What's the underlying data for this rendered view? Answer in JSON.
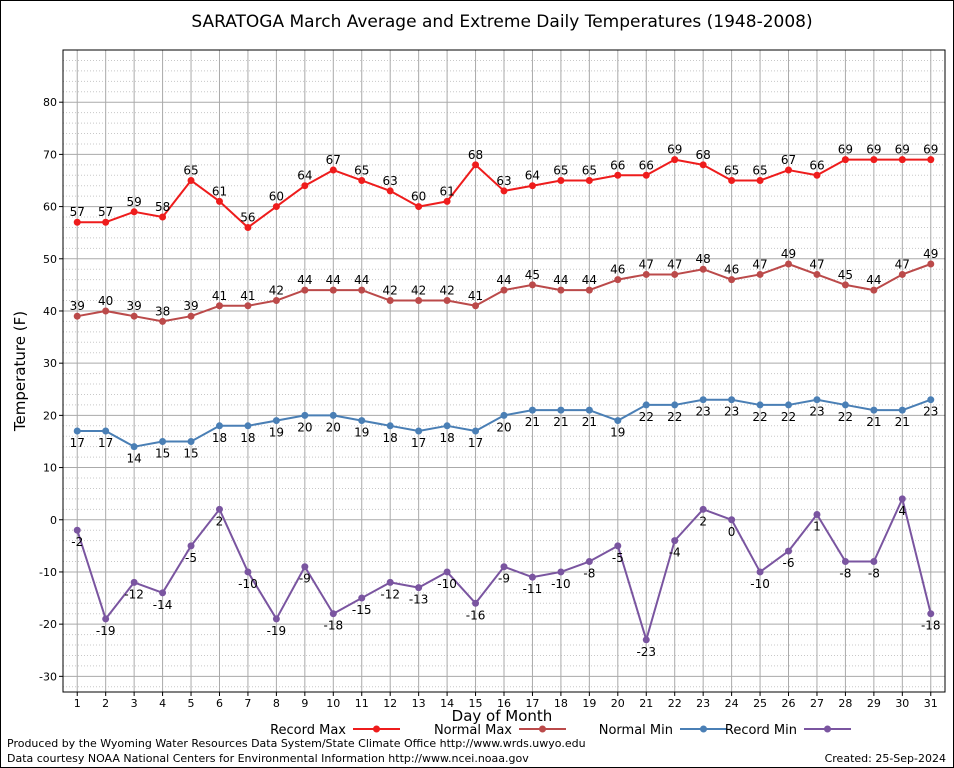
{
  "chart_data": {
    "type": "line",
    "title": "SARATOGA March Average and Extreme Daily Temperatures (1948-2008)",
    "xlabel": "Day of Month",
    "ylabel": "Temperature (F)",
    "xlim": [
      0.5,
      31.5
    ],
    "ylim": [
      -33,
      90
    ],
    "y_ticks": [
      -30,
      -20,
      -10,
      0,
      10,
      20,
      30,
      40,
      50,
      60,
      70,
      80
    ],
    "x": [
      1,
      2,
      3,
      4,
      5,
      6,
      7,
      8,
      9,
      10,
      11,
      12,
      13,
      14,
      15,
      16,
      17,
      18,
      19,
      20,
      21,
      22,
      23,
      24,
      25,
      26,
      27,
      28,
      29,
      30,
      31
    ],
    "grid": true,
    "legend_position": "bottom",
    "series": [
      {
        "name": "Record Max",
        "color": "#ee1c1c",
        "label_position": "above",
        "values": [
          57,
          57,
          59,
          58,
          65,
          61,
          56,
          60,
          64,
          67,
          65,
          63,
          60,
          61,
          68,
          63,
          64,
          65,
          65,
          66,
          66,
          69,
          68,
          65,
          65,
          67,
          66,
          69,
          69,
          69,
          69
        ]
      },
      {
        "name": "Normal Max",
        "color": "#bb4a4a",
        "label_position": "above",
        "values": [
          39,
          40,
          39,
          38,
          39,
          41,
          41,
          42,
          44,
          44,
          44,
          42,
          42,
          42,
          41,
          44,
          45,
          44,
          44,
          46,
          47,
          47,
          48,
          46,
          47,
          49,
          47,
          45,
          44,
          47,
          49
        ]
      },
      {
        "name": "Normal Min",
        "color": "#4a7fb5",
        "label_position": "below",
        "values": [
          17,
          17,
          14,
          15,
          15,
          18,
          18,
          19,
          20,
          20,
          19,
          18,
          17,
          18,
          17,
          20,
          21,
          21,
          21,
          19,
          22,
          22,
          23,
          23,
          22,
          22,
          23,
          22,
          21,
          21,
          23
        ]
      },
      {
        "name": "Record Min",
        "color": "#7a55a0",
        "label_position": "below",
        "values": [
          -2,
          -19,
          -12,
          -14,
          -5,
          2,
          -10,
          -19,
          -9,
          -18,
          -15,
          -12,
          -13,
          -10,
          -16,
          -9,
          -11,
          -10,
          -8,
          -5,
          -23,
          -4,
          2,
          0,
          -10,
          -6,
          1,
          -8,
          -8,
          4,
          -18
        ]
      }
    ]
  },
  "footer": {
    "produced_by": "Produced by the Wyoming Water Resources Data System/State Climate Office http://www.wrds.uwyo.edu",
    "data_courtesy": "Data courtesy NOAA National Centers for Environmental Information http://www.ncei.noaa.gov",
    "created": "Created:  25-Sep-2024"
  }
}
